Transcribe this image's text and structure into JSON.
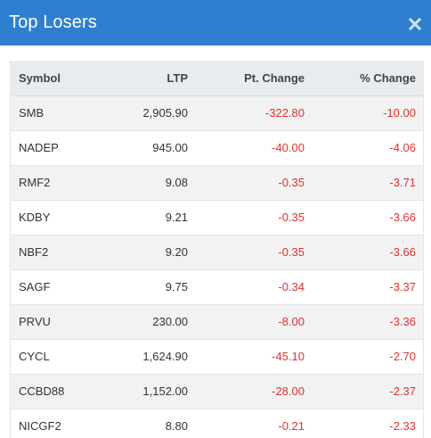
{
  "modal": {
    "title": "Top Losers",
    "close_icon": "close-icon"
  },
  "colors": {
    "header_bg": "#2f7fd0",
    "negative": "#e0312f"
  },
  "table": {
    "headers": {
      "symbol": "Symbol",
      "ltp": "LTP",
      "pt_change": "Pt. Change",
      "pct_change": "% Change"
    },
    "rows": [
      {
        "symbol": "SMB",
        "ltp": "2,905.90",
        "pt_change": "-322.80",
        "pct_change": "-10.00"
      },
      {
        "symbol": "NADEP",
        "ltp": "945.00",
        "pt_change": "-40.00",
        "pct_change": "-4.06"
      },
      {
        "symbol": "RMF2",
        "ltp": "9.08",
        "pt_change": "-0.35",
        "pct_change": "-3.71"
      },
      {
        "symbol": "KDBY",
        "ltp": "9.21",
        "pt_change": "-0.35",
        "pct_change": "-3.66"
      },
      {
        "symbol": "NBF2",
        "ltp": "9.20",
        "pt_change": "-0.35",
        "pct_change": "-3.66"
      },
      {
        "symbol": "SAGF",
        "ltp": "9.75",
        "pt_change": "-0.34",
        "pct_change": "-3.37"
      },
      {
        "symbol": "PRVU",
        "ltp": "230.00",
        "pt_change": "-8.00",
        "pct_change": "-3.36"
      },
      {
        "symbol": "CYCL",
        "ltp": "1,624.90",
        "pt_change": "-45.10",
        "pct_change": "-2.70"
      },
      {
        "symbol": "CCBD88",
        "ltp": "1,152.00",
        "pt_change": "-28.00",
        "pct_change": "-2.37"
      },
      {
        "symbol": "NICGF2",
        "ltp": "8.80",
        "pt_change": "-0.21",
        "pct_change": "-2.33"
      }
    ]
  }
}
